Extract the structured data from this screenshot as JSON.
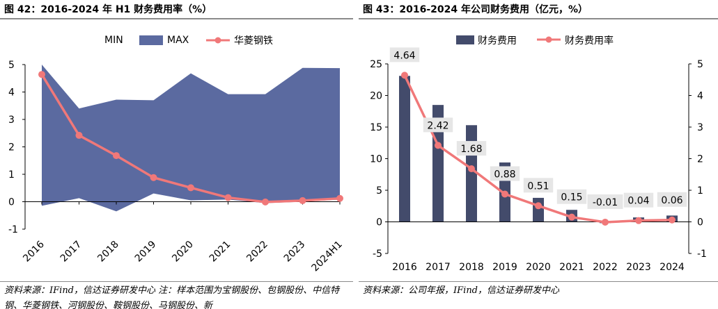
{
  "left": {
    "title": "图 42：2016-2024 年 H1 财务费用率（%）",
    "source": "资料来源：IFind，信达证券研发中心 注：样本范围为宝钢股份、包钢股份、中信特钢、华菱钢铁、河钢股份、鞍钢股份、马钢股份、新",
    "legend": [
      "MIN",
      "MAX",
      "华菱钢铁"
    ]
  },
  "right": {
    "title": "图 43：2016-2024 年公司财务费用（亿元，%）",
    "source": "资料来源：公司年报，IFind，信达证券研发中心",
    "legend": [
      "财务费用",
      "财务费用率"
    ]
  },
  "colors": {
    "band": "#5b6aa0",
    "line": "#f07879",
    "bar": "#434b6b",
    "label_bg": "#e6e6e6"
  },
  "chart_data": [
    {
      "type": "area",
      "title": "",
      "categories": [
        "2016",
        "2017",
        "2018",
        "2019",
        "2020",
        "2021",
        "2022",
        "2023",
        "2024H1"
      ],
      "series": [
        {
          "name": "MIN",
          "values": [
            -0.15,
            0.13,
            -0.35,
            0.3,
            0.05,
            0.08,
            -0.05,
            0.0,
            0.08
          ]
        },
        {
          "name": "MAX",
          "values": [
            5.0,
            3.4,
            3.72,
            3.7,
            4.68,
            3.92,
            3.92,
            4.88,
            4.87
          ]
        },
        {
          "name": "华菱钢铁",
          "type": "line",
          "values": [
            4.64,
            2.42,
            1.68,
            0.88,
            0.51,
            0.15,
            -0.01,
            0.04,
            0.12
          ]
        }
      ],
      "y_ticks": [
        "-1",
        "0",
        "1",
        "2",
        "3",
        "4",
        "5"
      ],
      "ylim": [
        -1,
        5
      ],
      "legend_position": "top"
    },
    {
      "type": "bar",
      "title": "",
      "categories": [
        "2016",
        "2017",
        "2018",
        "2019",
        "2020",
        "2021",
        "2022",
        "2023",
        "2024"
      ],
      "series": [
        {
          "name": "财务费用",
          "axis": "left",
          "values": [
            23.1,
            18.5,
            15.3,
            9.4,
            3.8,
            1.9,
            -0.2,
            0.7,
            1.0
          ]
        },
        {
          "name": "财务费用率",
          "axis": "right",
          "type": "line",
          "values": [
            4.64,
            2.42,
            1.68,
            0.88,
            0.51,
            0.15,
            -0.01,
            0.04,
            0.06
          ]
        }
      ],
      "data_labels": [
        "4.64",
        "2.42",
        "1.68",
        "0.88",
        "0.51",
        "0.15",
        "-0.01",
        "0.04",
        "0.06"
      ],
      "y_left_ticks": [
        "-5",
        "0",
        "5",
        "10",
        "15",
        "20",
        "25"
      ],
      "y_right_ticks": [
        "-1",
        "0",
        "1",
        "2",
        "3",
        "4",
        "5"
      ],
      "ylim_left": [
        -5,
        25
      ],
      "ylim_right": [
        -1,
        5
      ],
      "legend_position": "top"
    }
  ]
}
